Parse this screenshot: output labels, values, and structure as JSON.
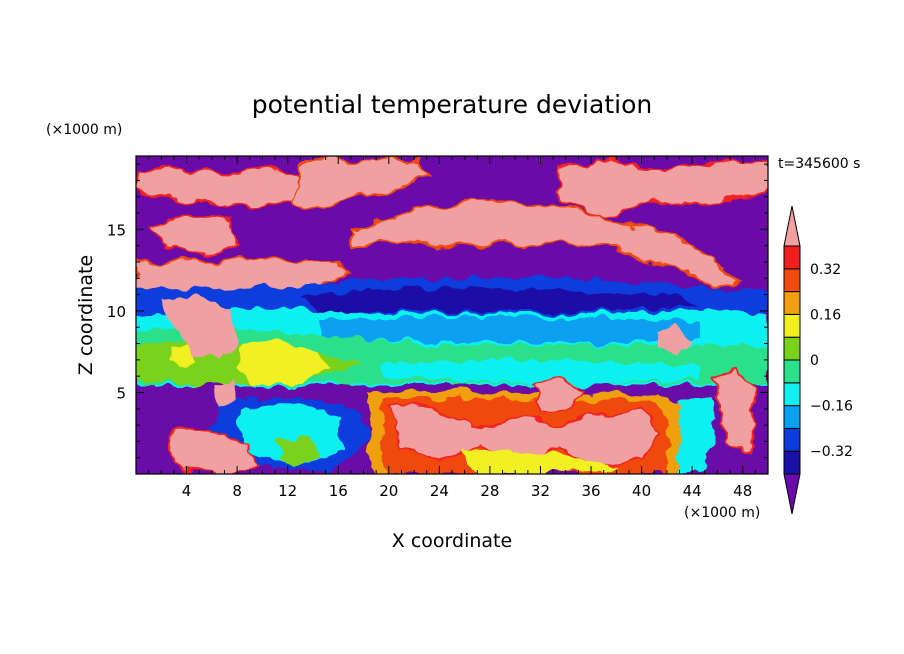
{
  "chart_data": {
    "type": "heatmap",
    "title": "potential temperature deviation",
    "xlabel": "X coordinate",
    "ylabel": "Z coordinate",
    "x_unit": "(×1000 m)",
    "y_unit": "(×1000 m)",
    "time_label": "t=345600 s",
    "xlim": [
      0,
      50
    ],
    "ylim": [
      0,
      19.5
    ],
    "x_ticks": [
      4,
      8,
      12,
      16,
      20,
      24,
      28,
      32,
      36,
      40,
      44,
      48
    ],
    "y_ticks": [
      5,
      10,
      15
    ],
    "colorbar": {
      "levels": [
        -0.4,
        -0.32,
        -0.24,
        -0.16,
        -0.08,
        0,
        0.08,
        0.16,
        0.24,
        0.32,
        0.4
      ],
      "tick_labels": [
        "0.32",
        "0.16",
        "0",
        "−0.16",
        "−0.32"
      ],
      "tick_values": [
        0.32,
        0.16,
        0,
        -0.16,
        -0.32
      ],
      "colors": [
        "#6a0aa8",
        "#1a10a6",
        "#0a3cdc",
        "#0aa0f0",
        "#10f0f0",
        "#2ce08a",
        "#7ad21c",
        "#f0f020",
        "#f0a010",
        "#f04a10",
        "#f02020",
        "#f0a0a0"
      ]
    }
  }
}
